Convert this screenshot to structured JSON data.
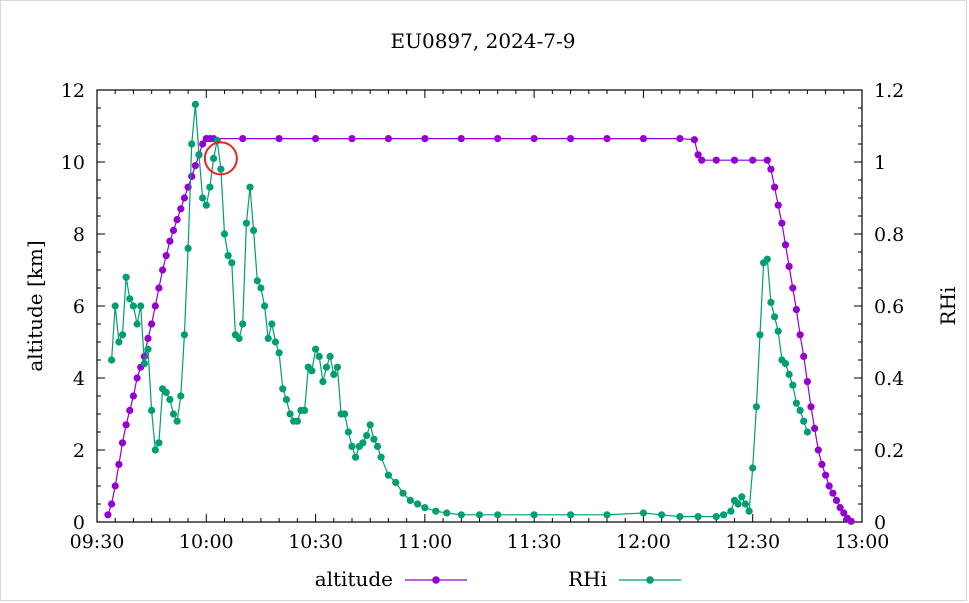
{
  "chart_data": {
    "type": "line",
    "title": "EU0897, 2024-7-9",
    "xlabel": "",
    "ylabel": "altitude [km]",
    "y2label": "RHi",
    "xlim": [
      570,
      780
    ],
    "ylim": [
      0,
      12
    ],
    "y2lim": [
      0,
      1.2
    ],
    "grid": false,
    "legend_position": "bottom",
    "x_ticks": [
      570,
      600,
      630,
      660,
      690,
      720,
      750,
      780
    ],
    "x_tick_labels": [
      "09:30",
      "10:00",
      "10:30",
      "11:00",
      "11:30",
      "12:00",
      "12:30",
      "13:00"
    ],
    "y_ticks": [
      0,
      2,
      4,
      6,
      8,
      10,
      12
    ],
    "y_tick_labels": [
      "0",
      "2",
      "4",
      "6",
      "8",
      "10",
      "12"
    ],
    "y2_ticks": [
      0,
      0.2,
      0.4,
      0.6,
      0.8,
      1.0,
      1.2
    ],
    "y2_tick_labels": [
      "0",
      "0.2",
      "0.4",
      "0.6",
      "0.8",
      "1",
      "1.2"
    ],
    "highlight_circle": {
      "x": 604,
      "y": 10.1,
      "color": "#e8241f"
    },
    "series": [
      {
        "name": "altitude",
        "axis": "left",
        "color": "#9400d3",
        "x": [
          573,
          574,
          575,
          576,
          577,
          578,
          579,
          580,
          581,
          582,
          583,
          584,
          585,
          586,
          587,
          588,
          589,
          590,
          591,
          592,
          593,
          594,
          595,
          596,
          597,
          598,
          599,
          600,
          601,
          602,
          610,
          620,
          630,
          640,
          650,
          660,
          670,
          680,
          690,
          700,
          710,
          720,
          730,
          734,
          735,
          736,
          740,
          745,
          750,
          754,
          755,
          756,
          757,
          758,
          759,
          760,
          761,
          762,
          763,
          764,
          765,
          766,
          767,
          768,
          769,
          770,
          771,
          772,
          773,
          774,
          775,
          776,
          777
        ],
        "values": [
          0.2,
          0.5,
          1.0,
          1.6,
          2.2,
          2.7,
          3.1,
          3.5,
          4.0,
          4.3,
          4.6,
          5.1,
          5.5,
          6.0,
          6.5,
          7.0,
          7.4,
          7.8,
          8.1,
          8.4,
          8.7,
          9.0,
          9.3,
          9.6,
          9.9,
          10.2,
          10.5,
          10.65,
          10.65,
          10.65,
          10.65,
          10.65,
          10.65,
          10.65,
          10.65,
          10.65,
          10.65,
          10.65,
          10.65,
          10.65,
          10.65,
          10.65,
          10.65,
          10.62,
          10.2,
          10.05,
          10.05,
          10.05,
          10.05,
          10.05,
          9.8,
          9.3,
          8.8,
          8.3,
          7.7,
          7.1,
          6.5,
          5.9,
          5.2,
          4.6,
          3.9,
          3.2,
          2.6,
          2.0,
          1.6,
          1.3,
          1.0,
          0.8,
          0.6,
          0.4,
          0.25,
          0.1,
          0.02
        ]
      },
      {
        "name": "RHi",
        "axis": "right",
        "color": "#009e73",
        "x": [
          574,
          575,
          576,
          577,
          578,
          579,
          580,
          581,
          582,
          583,
          584,
          585,
          586,
          587,
          588,
          589,
          590,
          591,
          592,
          593,
          594,
          595,
          596,
          597,
          598,
          599,
          600,
          601,
          602,
          603,
          604,
          605,
          606,
          607,
          608,
          609,
          610,
          611,
          612,
          613,
          614,
          615,
          616,
          617,
          618,
          619,
          620,
          621,
          622,
          623,
          624,
          625,
          626,
          627,
          628,
          629,
          630,
          631,
          632,
          633,
          634,
          635,
          636,
          637,
          638,
          639,
          640,
          641,
          642,
          643,
          644,
          645,
          646,
          647,
          648,
          650,
          652,
          654,
          656,
          658,
          660,
          663,
          666,
          670,
          675,
          680,
          690,
          700,
          710,
          720,
          725,
          730,
          735,
          740,
          742,
          744,
          745,
          746,
          747,
          748,
          749,
          750,
          751,
          752,
          753,
          754,
          755,
          756,
          757,
          758,
          759,
          760,
          761,
          762,
          763,
          764,
          765
        ],
        "values": [
          0.45,
          0.6,
          0.5,
          0.52,
          0.68,
          0.62,
          0.6,
          0.55,
          0.6,
          0.44,
          0.48,
          0.31,
          0.2,
          0.22,
          0.37,
          0.36,
          0.34,
          0.3,
          0.28,
          0.35,
          0.52,
          0.76,
          1.05,
          1.16,
          1.02,
          0.9,
          0.88,
          0.93,
          1.01,
          1.06,
          0.98,
          0.8,
          0.74,
          0.72,
          0.52,
          0.51,
          0.55,
          0.83,
          0.93,
          0.81,
          0.67,
          0.65,
          0.6,
          0.51,
          0.55,
          0.5,
          0.47,
          0.37,
          0.34,
          0.3,
          0.28,
          0.28,
          0.31,
          0.31,
          0.43,
          0.42,
          0.48,
          0.46,
          0.39,
          0.43,
          0.46,
          0.41,
          0.43,
          0.3,
          0.3,
          0.25,
          0.21,
          0.18,
          0.21,
          0.22,
          0.24,
          0.27,
          0.23,
          0.21,
          0.18,
          0.13,
          0.11,
          0.08,
          0.06,
          0.05,
          0.04,
          0.03,
          0.025,
          0.02,
          0.02,
          0.02,
          0.02,
          0.02,
          0.02,
          0.025,
          0.02,
          0.015,
          0.015,
          0.015,
          0.02,
          0.03,
          0.06,
          0.05,
          0.07,
          0.05,
          0.03,
          0.15,
          0.32,
          0.52,
          0.72,
          0.73,
          0.61,
          0.57,
          0.53,
          0.45,
          0.44,
          0.41,
          0.38,
          0.33,
          0.31,
          0.28,
          0.25
        ]
      }
    ]
  }
}
